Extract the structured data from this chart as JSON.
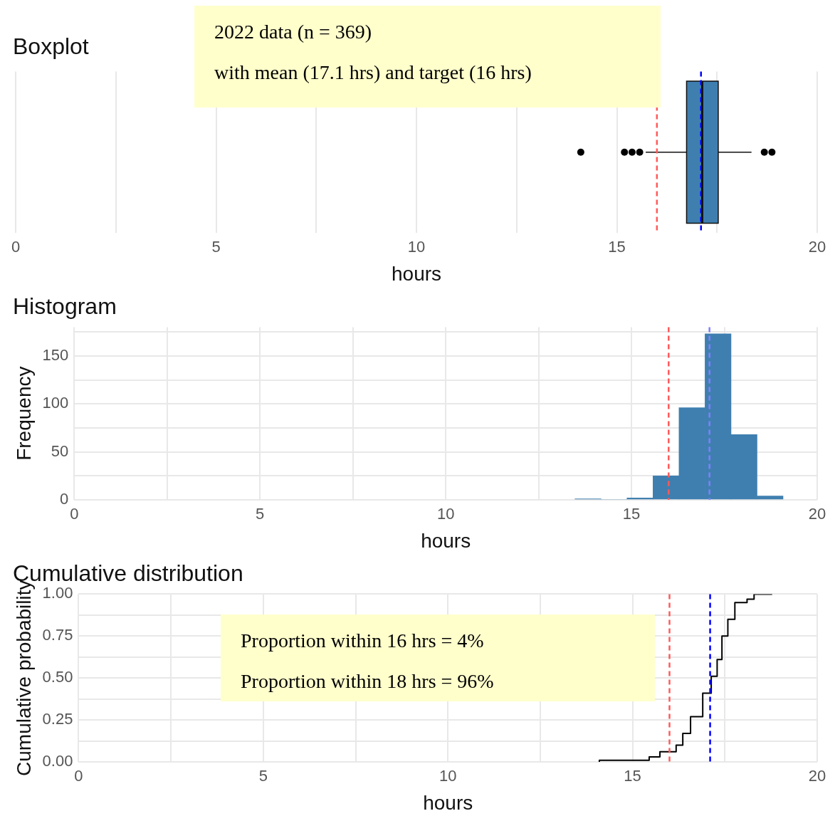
{
  "chart_data": [
    {
      "type": "box",
      "title": "Boxplot",
      "xlabel": "hours",
      "orientation": "horizontal",
      "categories": [
        null
      ],
      "color": "#3f7fb0",
      "boxes": [
        {
          "low": 15.72,
          "q1": 16.74,
          "median": 17.13,
          "q3": 17.53,
          "high": 18.36,
          "outliers": [
            14.1,
            15.19,
            15.38,
            15.57,
            18.68,
            18.87
          ]
        }
      ],
      "xlim": [
        0,
        20
      ],
      "xticks": [
        0,
        {
          "value": 2.5,
          "label": null
        },
        5,
        {
          "value": 7.5,
          "label": null
        },
        10,
        {
          "value": 12.5,
          "label": null
        },
        15,
        {
          "value": 17.5,
          "label": null
        },
        20
      ],
      "grid": "x",
      "tick_labels": "x",
      "ref_lines": [
        {
          "axis": "x",
          "value": 16,
          "color": "#ff5a5a",
          "line_style": "dashed"
        },
        {
          "axis": "x",
          "value": 17.1,
          "color": "#0000ff",
          "line_style": "dashed"
        }
      ],
      "annotations": [
        "2022 data (n = 369)",
        "with mean (17.1 hrs) and target (16 hrs)"
      ]
    },
    {
      "type": "histogram",
      "title": "Histogram",
      "xlabel": "hours",
      "ylabel": "Frequency",
      "color": "#3f7fb0",
      "bins": [
        13.48,
        14.18,
        14.88,
        15.58,
        16.28,
        16.98,
        17.68,
        18.38,
        19.08
      ],
      "values": [
        1,
        0,
        2,
        25,
        96,
        173,
        68,
        4
      ],
      "xlim": [
        0,
        20
      ],
      "xticks": [
        0,
        {
          "value": 2.5,
          "label": null
        },
        5,
        {
          "value": 7.5,
          "label": null
        },
        10,
        {
          "value": 12.5,
          "label": null
        },
        15,
        {
          "value": 17.5,
          "label": null
        },
        20
      ],
      "ylim": [
        0,
        180
      ],
      "yticks": [
        0,
        {
          "value": 25,
          "label": null
        },
        50,
        {
          "value": 75,
          "label": null
        },
        100,
        {
          "value": 125,
          "label": null
        },
        150,
        {
          "value": 175,
          "label": null
        }
      ],
      "grid": true,
      "ref_lines": [
        {
          "axis": "x",
          "value": 16,
          "color": "#ff5a5a",
          "line_style": "dashed"
        },
        {
          "axis": "x",
          "value": 17.1,
          "color": "#8080ff",
          "line_style": "dashed"
        }
      ]
    },
    {
      "type": "step",
      "title": "Cumulative distribution",
      "xlabel": "hours",
      "ylabel": "Cumulative probability",
      "color": "#000000",
      "x": [
        14.1,
        15.45,
        15.74,
        16.18,
        16.36,
        16.57,
        16.9,
        17.13,
        17.29,
        17.42,
        17.58,
        17.77,
        18.1,
        18.29,
        18.78
      ],
      "values": [
        0,
        0.01,
        0.03,
        0.06,
        0.1,
        0.17,
        0.27,
        0.41,
        0.51,
        0.61,
        0.75,
        0.85,
        0.95,
        0.97,
        1
      ],
      "xlim": [
        0,
        20
      ],
      "xticks": [
        0,
        {
          "value": 2.5,
          "label": null
        },
        5,
        {
          "value": 7.5,
          "label": null
        },
        10,
        {
          "value": 12.5,
          "label": null
        },
        15,
        {
          "value": 17.5,
          "label": null
        },
        20
      ],
      "ylim": [
        0,
        1
      ],
      "yticks": [
        {
          "value": 0,
          "label": "0.00"
        },
        {
          "value": 0.125,
          "label": null
        },
        {
          "value": 0.25,
          "label": "0.25"
        },
        {
          "value": 0.375,
          "label": null
        },
        {
          "value": 0.5,
          "label": "0.50"
        },
        {
          "value": 0.625,
          "label": null
        },
        {
          "value": 0.75,
          "label": "0.75"
        },
        {
          "value": 0.875,
          "label": null
        },
        {
          "value": 1,
          "label": "1.00"
        }
      ],
      "grid": true,
      "ref_lines": [
        {
          "axis": "x",
          "value": 16,
          "color": "#ff5a5a",
          "line_style": "dashed"
        },
        {
          "axis": "x",
          "value": 17.1,
          "color": "#0000ff",
          "line_style": "dashed"
        }
      ],
      "annotations": [
        "Proportion within 16 hrs = 4%",
        "Proportion within 18 hrs = 96%"
      ]
    }
  ]
}
